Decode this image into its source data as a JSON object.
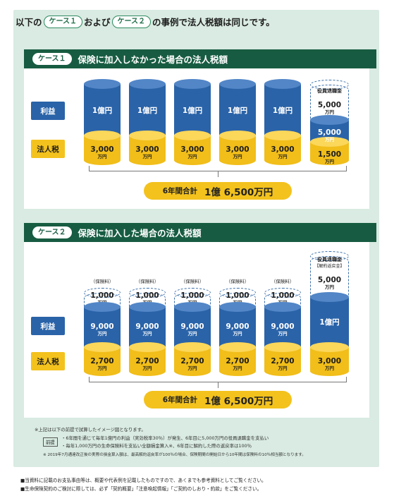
{
  "intro": {
    "pre": "以下の",
    "case1": "ケース１",
    "mid": "および",
    "case2": "ケース２",
    "post": "の事例で法人税額は同じです。"
  },
  "case1": {
    "tag": "ケース１",
    "title": "保険に加入しなかった場合の法人税額",
    "profit_label": "利益",
    "tax_label": "法人税",
    "columns": [
      {
        "profit": "1億円",
        "tax_value": "3,000",
        "tax_unit": "万円"
      },
      {
        "profit": "1億円",
        "tax_value": "3,000",
        "tax_unit": "万円"
      },
      {
        "profit": "1億円",
        "tax_value": "3,000",
        "tax_unit": "万円"
      },
      {
        "profit": "1億円",
        "tax_value": "3,000",
        "tax_unit": "万円"
      },
      {
        "profit": "1億円",
        "tax_value": "3,000",
        "tax_unit": "万円"
      }
    ],
    "last": {
      "head": "役員退職金",
      "head_value": "5,000",
      "head_unit": "万円",
      "profit_value": "5,000",
      "profit_unit": "万円",
      "tax_value": "1,500",
      "tax_unit": "万円"
    },
    "total_label": "6年間合計",
    "total_value": "1億 6,500万円"
  },
  "case2": {
    "tag": "ケース２",
    "title": "保険に加入した場合の法人税額",
    "profit_label": "利益",
    "tax_label": "法人税",
    "columns": [
      {
        "premium_label": "（保険料）",
        "premium_value": "1,000",
        "premium_unit": "万円",
        "profit_value": "9,000",
        "profit_unit": "万円",
        "tax_value": "2,700",
        "tax_unit": "万円"
      },
      {
        "premium_label": "（保険料）",
        "premium_value": "1,000",
        "premium_unit": "万円",
        "profit_value": "9,000",
        "profit_unit": "万円",
        "tax_value": "2,700",
        "tax_unit": "万円"
      },
      {
        "premium_label": "（保険料）",
        "premium_value": "1,000",
        "premium_unit": "万円",
        "profit_value": "9,000",
        "profit_unit": "万円",
        "tax_value": "2,700",
        "tax_unit": "万円"
      },
      {
        "premium_label": "（保険料）",
        "premium_value": "1,000",
        "premium_unit": "万円",
        "profit_value": "9,000",
        "profit_unit": "万円",
        "tax_value": "2,700",
        "tax_unit": "万円"
      },
      {
        "premium_label": "（保険料）",
        "premium_value": "1,000",
        "premium_unit": "万円",
        "profit_value": "9,000",
        "profit_unit": "万円",
        "tax_value": "2,700",
        "tax_unit": "万円"
      }
    ],
    "last": {
      "head": "役員退職金",
      "head_sub": "【解約返戻金】",
      "head_value": "5,000",
      "head_unit": "万円",
      "profit": "1億円",
      "tax_value": "3,000",
      "tax_unit": "万円"
    },
    "total_label": "6年間合計",
    "total_value": "1億 6,500万円"
  },
  "notes": {
    "main": "※上記は以下の前提で試算したイメージ図となります。",
    "premise_tag": "前提",
    "premise1": "・6年間を通じて毎年1億円の利益（実効税率30％）が発生、6年目に5,000万円の役員退職金を支払い",
    "premise2": "・毎年1,000万円の生命保険料を支払い全額損金算入※、6年目に解約した際の返戻率は100％",
    "asterisk": "※ 2019年7月通達改正後の実際の損金算入額は、最高解約返戻率が100％の場合、保険期間の開始日から10年間は保険料の10％相当額となります。"
  },
  "footer": {
    "line1": "■当資料に記載のお支払事由等は、概要や代表例を記載したものですので、あくまでも参考資料としてご覧ください。",
    "line2": "■生命保険契約のご検討に際しては、必ず「契約概要」「注意喚起情報」「ご契約のしおり・約款」をご覧ください。"
  }
}
